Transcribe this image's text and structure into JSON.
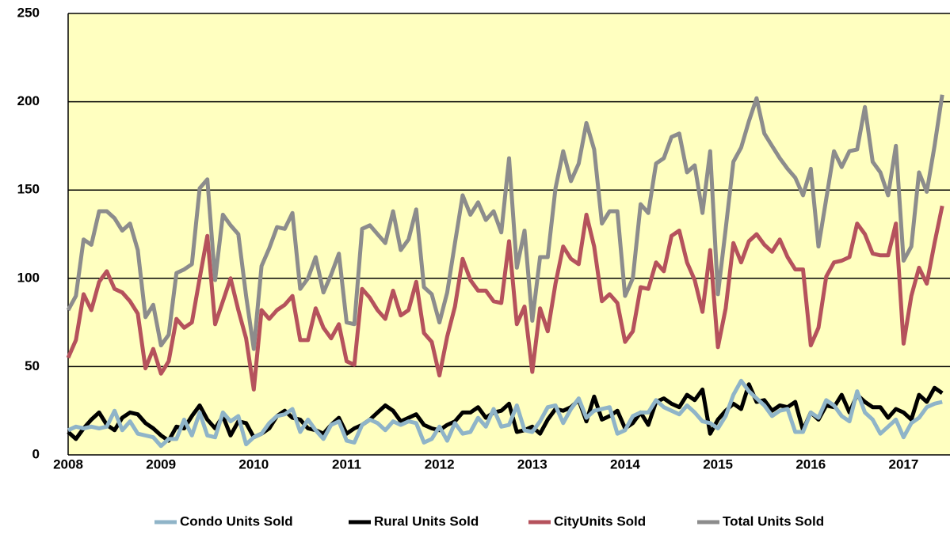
{
  "chart_data": {
    "type": "line",
    "categories": [
      "2008",
      null,
      null,
      null,
      null,
      null,
      null,
      null,
      null,
      null,
      null,
      null,
      "2009",
      null,
      null,
      null,
      null,
      null,
      null,
      null,
      null,
      null,
      null,
      null,
      "2010",
      null,
      null,
      null,
      null,
      null,
      null,
      null,
      null,
      null,
      null,
      null,
      "2011",
      null,
      null,
      null,
      null,
      null,
      null,
      null,
      null,
      null,
      null,
      null,
      "2012",
      null,
      null,
      null,
      null,
      null,
      null,
      null,
      null,
      null,
      null,
      null,
      "2013",
      null,
      null,
      null,
      null,
      null,
      null,
      null,
      null,
      null,
      null,
      null,
      "2014",
      null,
      null,
      null,
      null,
      null,
      null,
      null,
      null,
      null,
      null,
      null,
      "2015",
      null,
      null,
      null,
      null,
      null,
      null,
      null,
      null,
      null,
      null,
      null,
      "2016",
      null,
      null,
      null,
      null,
      null,
      null,
      null,
      null,
      null,
      null,
      null,
      "2017",
      null,
      null,
      null,
      null,
      null
    ],
    "series": [
      {
        "name": "Condo Units Sold",
        "color": "#8fb4c8",
        "values": [
          14,
          16,
          15,
          16,
          15,
          16,
          25,
          14,
          19,
          12,
          11,
          10,
          5,
          9,
          9,
          20,
          11,
          24,
          11,
          10,
          24,
          19,
          22,
          6,
          10,
          12,
          18,
          22,
          23,
          26,
          13,
          20,
          14,
          9,
          17,
          19,
          8,
          7,
          17,
          20,
          18,
          14,
          19,
          17,
          19,
          18,
          7,
          9,
          16,
          8,
          18,
          12,
          13,
          21,
          16,
          26,
          16,
          17,
          28,
          14,
          13,
          19,
          27,
          28,
          18,
          26,
          32,
          21,
          25,
          26,
          27,
          12,
          14,
          22,
          24,
          24,
          31,
          27,
          25,
          23,
          28,
          24,
          19,
          18,
          15,
          22,
          34,
          42,
          36,
          32,
          28,
          22,
          25,
          26,
          13,
          13,
          24,
          21,
          31,
          28,
          22,
          19,
          36,
          24,
          20,
          12,
          16,
          20,
          10,
          18,
          21,
          27,
          29,
          30
        ]
      },
      {
        "name": "Rural Units Sold",
        "color": "#000000",
        "values": [
          13,
          9,
          15,
          20,
          24,
          17,
          14,
          21,
          24,
          23,
          18,
          15,
          11,
          8,
          16,
          15,
          22,
          28,
          20,
          15,
          22,
          11,
          19,
          18,
          10,
          12,
          15,
          22,
          25,
          21,
          20,
          15,
          14,
          12,
          17,
          21,
          12,
          15,
          17,
          20,
          24,
          28,
          25,
          19,
          21,
          23,
          17,
          15,
          14,
          17,
          19,
          24,
          24,
          27,
          21,
          24,
          25,
          29,
          13,
          14,
          16,
          12,
          20,
          26,
          25,
          27,
          31,
          19,
          33,
          20,
          22,
          25,
          15,
          18,
          24,
          17,
          30,
          32,
          29,
          27,
          34,
          31,
          37,
          12,
          20,
          25,
          29,
          26,
          40,
          30,
          31,
          25,
          28,
          27,
          30,
          14,
          24,
          20,
          28,
          27,
          34,
          24,
          34,
          30,
          27,
          27,
          21,
          26,
          24,
          20,
          34,
          30,
          38,
          35
        ]
      },
      {
        "name": "CityUnits Sold",
        "color": "#b5525c",
        "values": [
          55,
          65,
          91,
          82,
          98,
          104,
          94,
          92,
          87,
          80,
          49,
          60,
          46,
          53,
          77,
          72,
          75,
          100,
          124,
          74,
          87,
          100,
          82,
          66,
          37,
          82,
          77,
          82,
          85,
          90,
          65,
          65,
          83,
          72,
          66,
          74,
          53,
          51,
          94,
          89,
          82,
          77,
          93,
          79,
          82,
          98,
          69,
          64,
          45,
          67,
          84,
          111,
          99,
          93,
          93,
          87,
          86,
          121,
          74,
          84,
          47,
          83,
          70,
          97,
          118,
          111,
          108,
          136,
          118,
          87,
          91,
          86,
          64,
          70,
          95,
          94,
          109,
          104,
          124,
          127,
          109,
          99,
          81,
          116,
          61,
          83,
          120,
          109,
          121,
          125,
          119,
          115,
          122,
          112,
          105,
          105,
          62,
          72,
          101,
          109,
          110,
          112,
          131,
          125,
          114,
          113,
          113,
          131,
          63,
          90,
          106,
          97,
          120,
          141
        ]
      },
      {
        "name": "Total Units Sold",
        "color": "#8c8c8c",
        "values": [
          82,
          90,
          122,
          119,
          138,
          138,
          134,
          127,
          131,
          116,
          78,
          85,
          62,
          68,
          103,
          105,
          108,
          151,
          156,
          99,
          136,
          130,
          125,
          90,
          60,
          107,
          117,
          129,
          128,
          137,
          94,
          100,
          112,
          92,
          102,
          114,
          75,
          74,
          128,
          130,
          125,
          120,
          138,
          116,
          122,
          139,
          95,
          91,
          75,
          92,
          120,
          147,
          136,
          143,
          133,
          138,
          126,
          168,
          106,
          127,
          76,
          112,
          112,
          151,
          172,
          155,
          165,
          188,
          173,
          131,
          138,
          138,
          90,
          100,
          142,
          137,
          165,
          168,
          180,
          182,
          160,
          164,
          137,
          172,
          91,
          128,
          166,
          174,
          189,
          202,
          182,
          175,
          168,
          162,
          157,
          147,
          162,
          118,
          145,
          172,
          163,
          172,
          173,
          197,
          166,
          160,
          147,
          175,
          110,
          118,
          160,
          149,
          175,
          204
        ]
      }
    ],
    "ylim": [
      0,
      250
    ],
    "yticks": [
      0,
      50,
      100,
      150,
      200,
      250
    ],
    "grid": true,
    "legend": "bottom"
  }
}
